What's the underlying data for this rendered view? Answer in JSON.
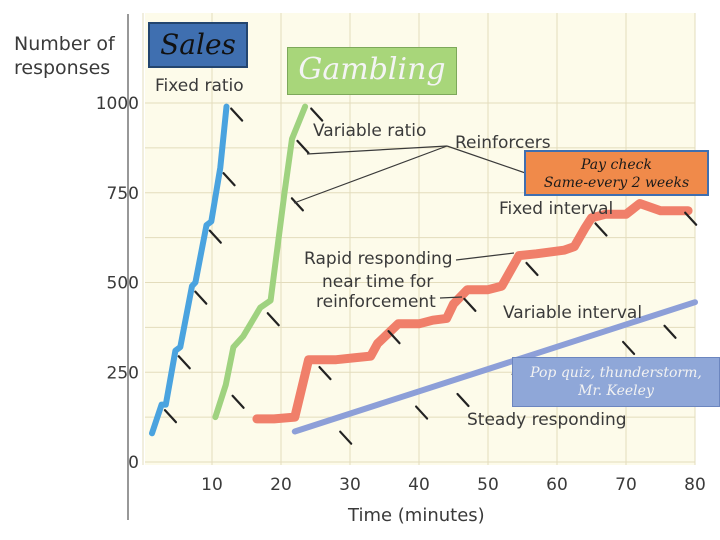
{
  "chart_data": {
    "type": "line",
    "ylabel": "Number of responses",
    "xlabel": "Time (minutes)",
    "xlim": [
      0,
      80
    ],
    "ylim": [
      0,
      1000
    ],
    "x_ticks": [
      "10",
      "20",
      "30",
      "40",
      "50",
      "60",
      "70",
      "80"
    ],
    "y_ticks": [
      "0",
      "250",
      "500",
      "750",
      "1000"
    ],
    "grid": true,
    "series": [
      {
        "name": "Fixed ratio",
        "color": "#4aa3df",
        "x": [
          1.3,
          2.7,
          3.3,
          4.7,
          5.4,
          7.1,
          7.6,
          9.2,
          9.9,
          11.2,
          12.1
        ],
        "y": [
          80,
          160,
          160,
          310,
          320,
          490,
          500,
          660,
          670,
          820,
          990
        ]
      },
      {
        "name": "Variable ratio",
        "color": "#9fd27f",
        "x": [
          10.5,
          12,
          13.1,
          14.5,
          17,
          18.5,
          20.5,
          21.6,
          23.5
        ],
        "y": [
          125,
          215,
          320,
          350,
          430,
          450,
          750,
          900,
          990
        ]
      },
      {
        "name": "Fixed interval",
        "color": "#f07f6a",
        "x": [
          16.5,
          19,
          22,
          24,
          28,
          30.5,
          33,
          34,
          37,
          40,
          42,
          44,
          45,
          47,
          50,
          52,
          54.5,
          57,
          61,
          62.5,
          64,
          65,
          67,
          70,
          72,
          75,
          79
        ],
        "y": [
          120,
          120,
          125,
          285,
          285,
          290,
          295,
          330,
          385,
          385,
          395,
          400,
          440,
          480,
          480,
          490,
          575,
          580,
          590,
          600,
          650,
          680,
          690,
          690,
          720,
          700,
          700
        ]
      },
      {
        "name": "Variable interval",
        "color": "#8d9fd8",
        "x": [
          22,
          80
        ],
        "y": [
          85,
          445
        ]
      }
    ],
    "annotations": [
      "Reinforcers",
      "Rapid responding near time for reinforcement",
      "Steady responding"
    ]
  },
  "labels": {
    "fixed_ratio": "Fixed ratio",
    "variable_ratio": "Variable ratio",
    "reinforcers": "Reinforcers",
    "fixed_interval": "Fixed interval",
    "rapid_1": "Rapid responding",
    "rapid_2": "near time for",
    "rapid_3": "reinforcement",
    "variable_interval": "Variable interval",
    "steady": "Steady responding",
    "ylabel_1": "Number of",
    "ylabel_2": "responses",
    "xlabel": "Time (minutes)"
  },
  "callouts": {
    "sales": "Sales",
    "gambling": "Gambling",
    "paycheck_1": "Pay check",
    "paycheck_2": "Same-every 2 weeks",
    "popquiz_1": "Pop quiz, thunderstorm,",
    "popquiz_2": "Mr. Keeley"
  }
}
